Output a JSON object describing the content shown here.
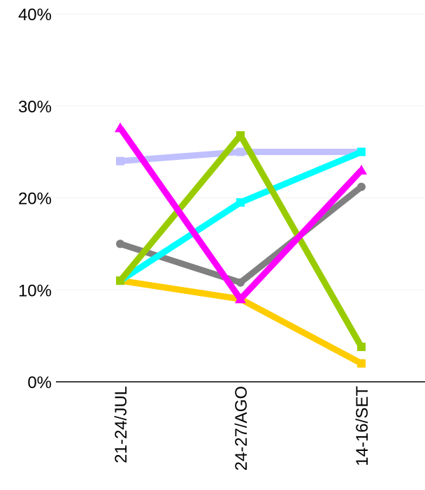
{
  "chart_data": {
    "type": "line",
    "title": "",
    "xlabel": "",
    "ylabel": "",
    "categories": [
      "21-24/JUL",
      "24-27/AGO",
      "14-16/SET"
    ],
    "ylim": [
      0,
      40
    ],
    "y_ticks": [
      {
        "value": 0,
        "label": "0%"
      },
      {
        "value": 10,
        "label": "10%"
      },
      {
        "value": 20,
        "label": "20%"
      },
      {
        "value": 30,
        "label": "30%"
      },
      {
        "value": 40,
        "label": "40%"
      }
    ],
    "grid": true,
    "legend": "none",
    "series": [
      {
        "color": "#c0c0ff",
        "marker": "square",
        "values": [
          24,
          25,
          25
        ]
      },
      {
        "color": "#ffcc00",
        "marker": "square",
        "values": [
          11,
          9,
          2
        ]
      },
      {
        "color": "#808080",
        "marker": "circle",
        "values": [
          15,
          10.8,
          21.2
        ]
      },
      {
        "color": "#00ffff",
        "marker": "square",
        "values": [
          11,
          19.5,
          25
        ]
      },
      {
        "color": "#99cc00",
        "marker": "square",
        "values": [
          11,
          26.8,
          3.8
        ]
      },
      {
        "color": "#ff00ff",
        "marker": "triangle",
        "values": [
          27.6,
          9,
          23
        ]
      }
    ]
  }
}
